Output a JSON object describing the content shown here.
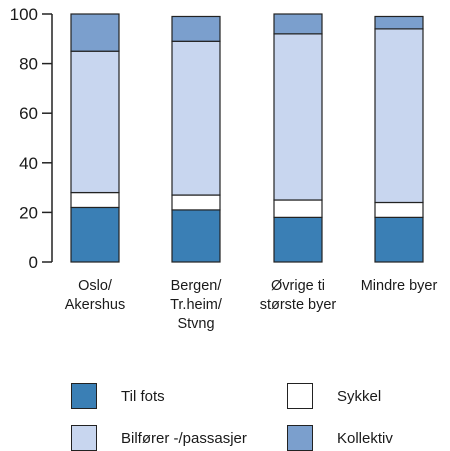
{
  "chart_data": {
    "type": "bar",
    "stacked": true,
    "categories": [
      "Oslo/\nAkershus",
      "Bergen/\nTr.heim/\nStvng",
      "Øvrige ti\nstørste byer",
      "Mindre byer"
    ],
    "series": [
      {
        "name": "Til fots",
        "color": "#3a7fb5",
        "values": [
          22,
          21,
          18,
          18
        ]
      },
      {
        "name": "Sykkel",
        "color": "#ffffff",
        "values": [
          6,
          6,
          7,
          6
        ]
      },
      {
        "name": "Bilfører -/passasjer",
        "color": "#c8d6ef",
        "values": [
          57,
          62,
          67,
          70
        ]
      },
      {
        "name": "Kollektiv",
        "color": "#7b9fcd",
        "values": [
          15,
          10,
          8,
          5
        ]
      }
    ],
    "y_ticks": [
      "0",
      "20",
      "40",
      "60",
      "80",
      "100"
    ],
    "ylim": [
      0,
      100
    ],
    "legend_position": "bottom",
    "grid": false
  }
}
